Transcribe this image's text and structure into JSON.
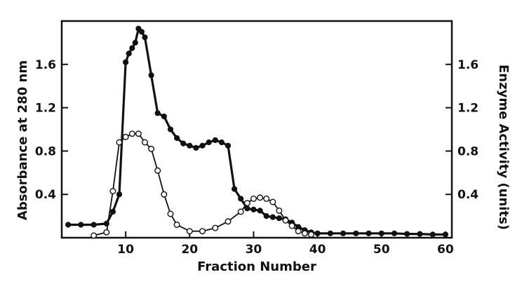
{
  "chart_data": {
    "type": "line",
    "xlabel": "Fraction Number",
    "ylabel_left": "Absorbance at 280 nm",
    "ylabel_right": "Enzyme Activity (units)",
    "xlim": [
      0,
      61
    ],
    "ylim": [
      0,
      2.0
    ],
    "x_ticks": [
      10,
      20,
      30,
      40,
      50,
      60
    ],
    "y_ticks": [
      0.4,
      0.8,
      1.2,
      1.6
    ],
    "x_tick_labels": [
      "10",
      "20",
      "30",
      "40",
      "50",
      "60"
    ],
    "y_tick_labels_left": [
      "0.4",
      "0.8",
      "1.2",
      "1.6"
    ],
    "y_tick_labels_right": [
      "0.4",
      "0.8",
      "1.2",
      "1.6"
    ],
    "grid": false,
    "series": [
      {
        "marker": "filled-circle",
        "axis": "left",
        "points": [
          [
            1,
            0.12
          ],
          [
            3,
            0.12
          ],
          [
            5,
            0.12
          ],
          [
            7,
            0.13
          ],
          [
            8,
            0.24
          ],
          [
            9,
            0.4
          ],
          [
            10,
            1.62
          ],
          [
            10.5,
            1.7
          ],
          [
            11,
            1.75
          ],
          [
            11.5,
            1.8
          ],
          [
            12,
            1.93
          ],
          [
            12.5,
            1.9
          ],
          [
            13,
            1.85
          ],
          [
            14,
            1.5
          ],
          [
            15,
            1.15
          ],
          [
            16,
            1.12
          ],
          [
            17,
            1.0
          ],
          [
            18,
            0.92
          ],
          [
            19,
            0.87
          ],
          [
            20,
            0.85
          ],
          [
            21,
            0.83
          ],
          [
            22,
            0.85
          ],
          [
            23,
            0.88
          ],
          [
            24,
            0.9
          ],
          [
            25,
            0.88
          ],
          [
            26,
            0.85
          ],
          [
            27,
            0.45
          ],
          [
            28,
            0.36
          ],
          [
            29,
            0.27
          ],
          [
            30,
            0.26
          ],
          [
            31,
            0.25
          ],
          [
            32,
            0.2
          ],
          [
            33,
            0.19
          ],
          [
            34,
            0.18
          ],
          [
            35,
            0.17
          ],
          [
            36,
            0.14
          ],
          [
            37,
            0.1
          ],
          [
            38,
            0.07
          ],
          [
            39,
            0.05
          ],
          [
            40,
            0.04
          ],
          [
            42,
            0.04
          ],
          [
            44,
            0.04
          ],
          [
            46,
            0.04
          ],
          [
            48,
            0.04
          ],
          [
            50,
            0.04
          ],
          [
            52,
            0.04
          ],
          [
            54,
            0.035
          ],
          [
            56,
            0.035
          ],
          [
            58,
            0.03
          ],
          [
            60,
            0.03
          ]
        ]
      },
      {
        "marker": "open-circle",
        "axis": "right",
        "points": [
          [
            5,
            0.02
          ],
          [
            7,
            0.05
          ],
          [
            8,
            0.43
          ],
          [
            9,
            0.88
          ],
          [
            10,
            0.93
          ],
          [
            11,
            0.96
          ],
          [
            12,
            0.96
          ],
          [
            13,
            0.88
          ],
          [
            14,
            0.82
          ],
          [
            15,
            0.62
          ],
          [
            16,
            0.4
          ],
          [
            17,
            0.22
          ],
          [
            18,
            0.12
          ],
          [
            20,
            0.06
          ],
          [
            22,
            0.06
          ],
          [
            24,
            0.09
          ],
          [
            26,
            0.15
          ],
          [
            28,
            0.24
          ],
          [
            29,
            0.32
          ],
          [
            30,
            0.36
          ],
          [
            31,
            0.37
          ],
          [
            32,
            0.36
          ],
          [
            33,
            0.33
          ],
          [
            34,
            0.25
          ],
          [
            35,
            0.16
          ],
          [
            36,
            0.11
          ],
          [
            37,
            0.06
          ],
          [
            38,
            0.04
          ],
          [
            39,
            0.03
          ]
        ]
      }
    ]
  }
}
